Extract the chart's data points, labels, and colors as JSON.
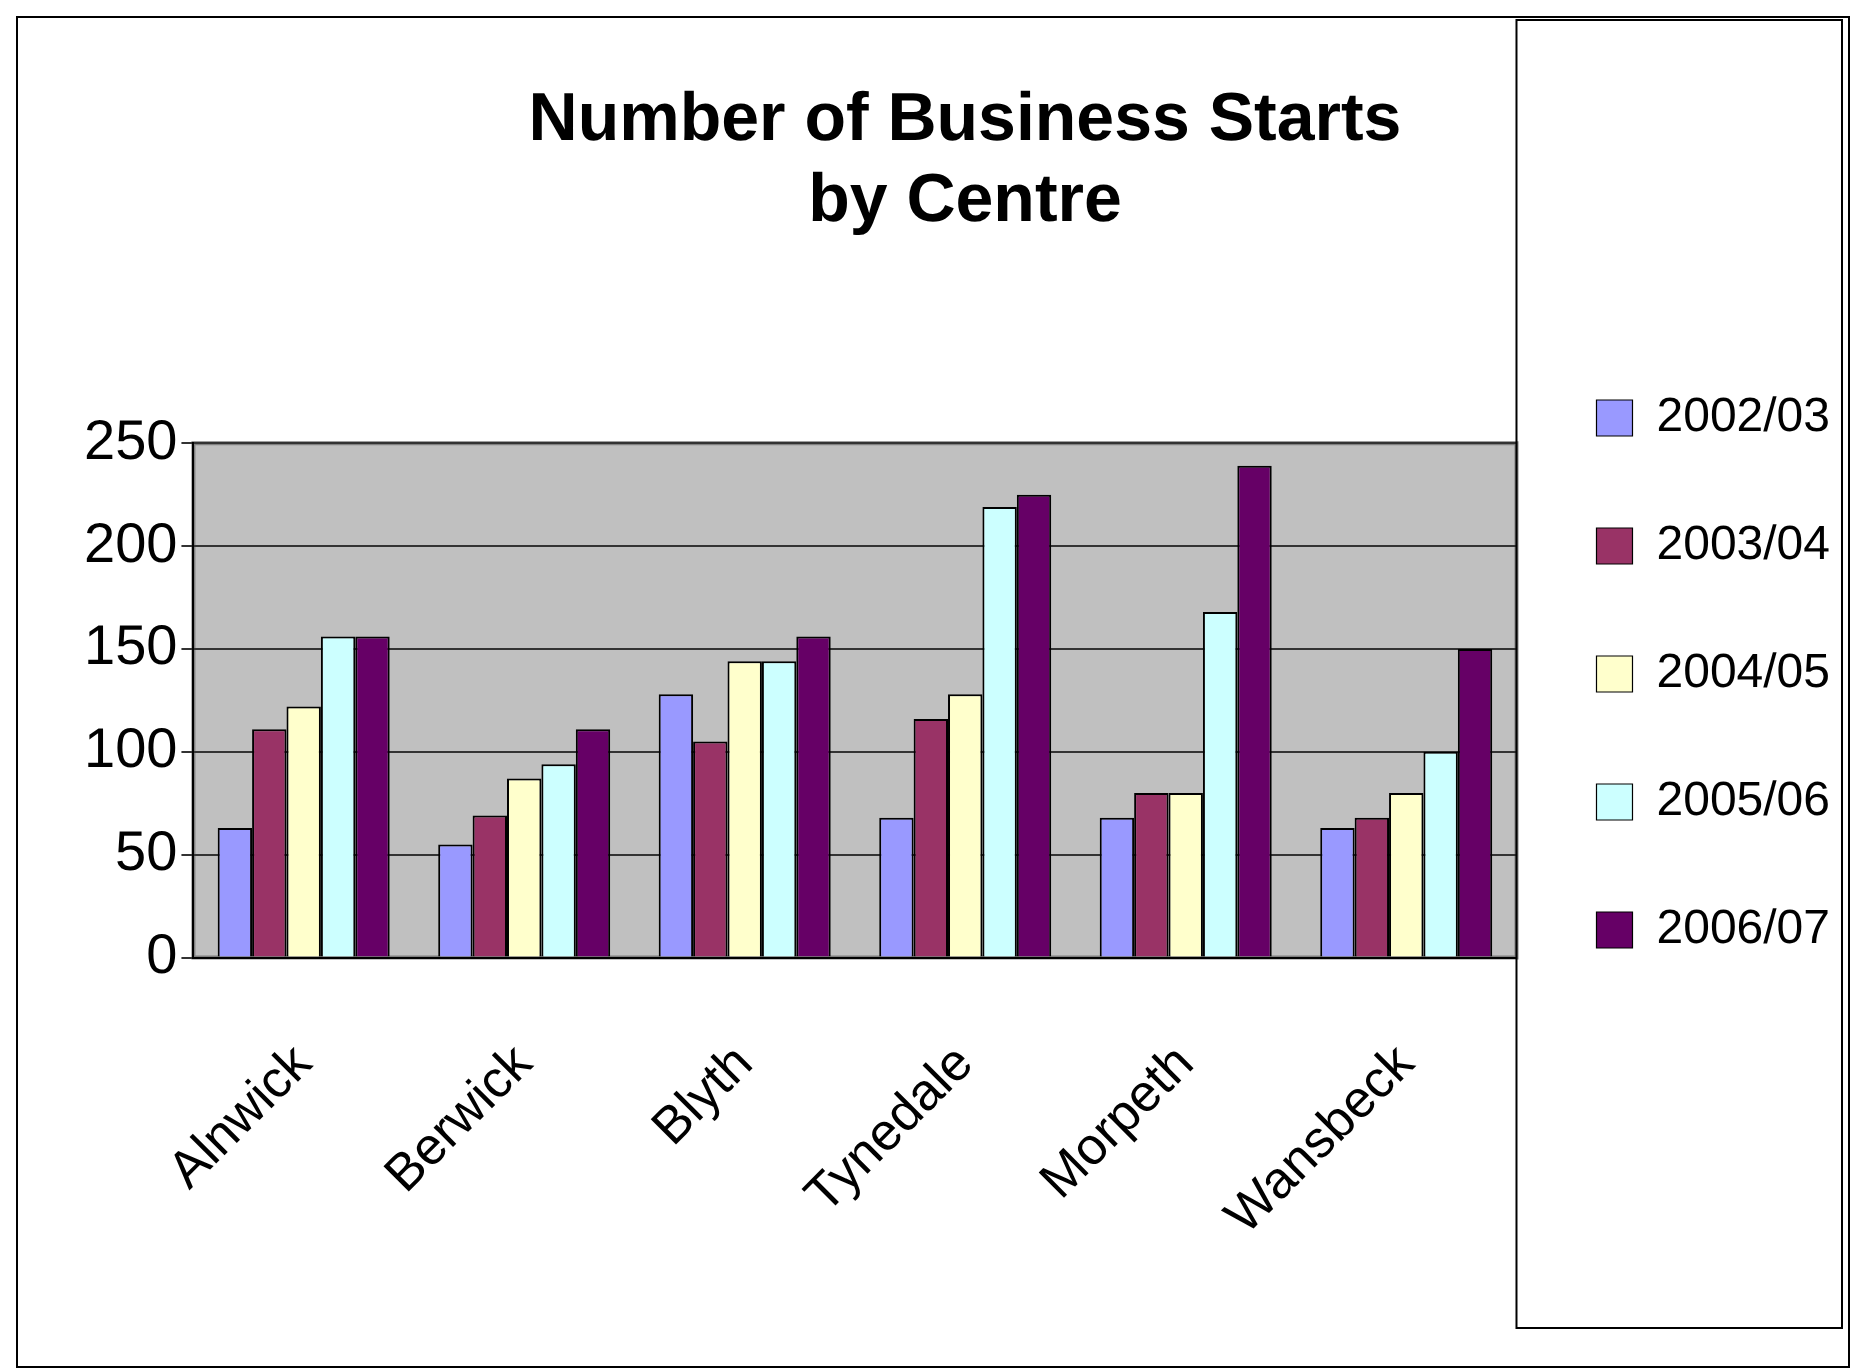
{
  "chart_data": {
    "type": "bar",
    "title": "Number of Business Starts\nby Centre",
    "categories": [
      "Alnwick",
      "Berwick",
      "Blyth",
      "Tynedale",
      "Morpeth",
      "Wansbeck"
    ],
    "series": [
      {
        "name": "2002/03",
        "color": "#9999ff",
        "values": [
          63,
          55,
          128,
          68,
          68,
          63
        ]
      },
      {
        "name": "2003/04",
        "color": "#993366",
        "values": [
          111,
          69,
          105,
          116,
          80,
          68
        ]
      },
      {
        "name": "2004/05",
        "color": "#ffffcc",
        "values": [
          122,
          87,
          144,
          128,
          80,
          80
        ]
      },
      {
        "name": "2005/06",
        "color": "#ccffff",
        "values": [
          156,
          94,
          144,
          219,
          168,
          100
        ]
      },
      {
        "name": "2006/07",
        "color": "#660066",
        "values": [
          156,
          111,
          156,
          225,
          239,
          150
        ]
      }
    ],
    "ylim": [
      0,
      250
    ],
    "yticks": [
      0,
      50,
      100,
      150,
      200,
      250
    ],
    "grid": "y",
    "legend": "right"
  }
}
